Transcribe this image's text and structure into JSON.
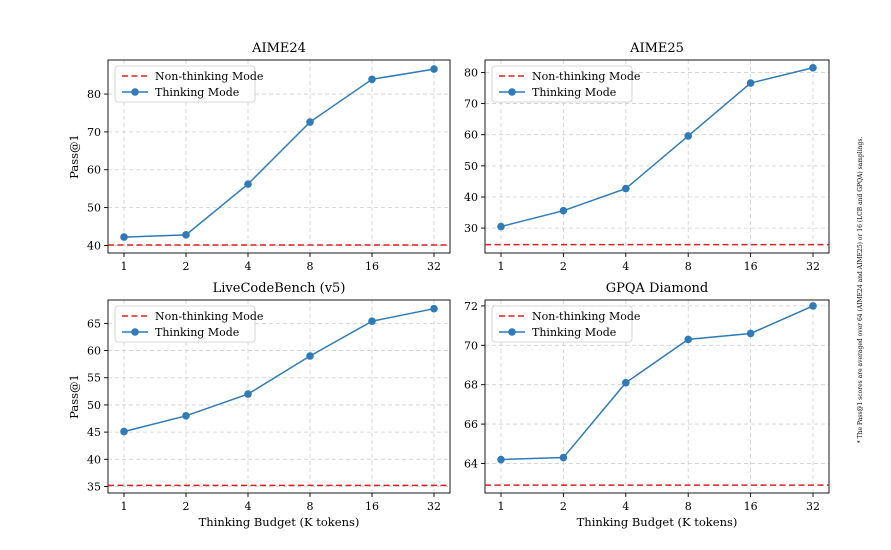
{
  "colors": {
    "thinking": "#2f7bb8",
    "non_thinking": "#e02020",
    "grid": "#cfcfcf",
    "axis": "#000000"
  },
  "footnote": "* The Pass@1 scores are averaged over 64 (AIME24 and AIME25) or 16 (LCB and GPQA) samplings.",
  "chart_data": [
    {
      "type": "line",
      "title": "AIME24",
      "xlabel": "",
      "ylabel": "Pass@1",
      "x_scale": "log2",
      "categories": [
        "1",
        "2",
        "4",
        "8",
        "16",
        "32"
      ],
      "ylim": [
        38,
        89
      ],
      "yticks": [
        40,
        50,
        60,
        70,
        80
      ],
      "legend": "top-left",
      "grid": true,
      "series": [
        {
          "name": "Non-thinking Mode",
          "style": "dashed",
          "baseline": 40.1
        },
        {
          "name": "Thinking Mode",
          "style": "line-marker",
          "values": [
            42.2,
            42.8,
            56.2,
            72.6,
            83.9,
            86.6
          ]
        }
      ]
    },
    {
      "type": "line",
      "title": "AIME25",
      "xlabel": "",
      "ylabel": "",
      "x_scale": "log2",
      "categories": [
        "1",
        "2",
        "4",
        "8",
        "16",
        "32"
      ],
      "ylim": [
        22,
        84
      ],
      "yticks": [
        30,
        40,
        50,
        60,
        70,
        80
      ],
      "legend": "top-left",
      "grid": true,
      "series": [
        {
          "name": "Non-thinking Mode",
          "style": "dashed",
          "baseline": 24.7
        },
        {
          "name": "Thinking Mode",
          "style": "line-marker",
          "values": [
            30.5,
            35.6,
            42.7,
            59.6,
            76.6,
            81.5
          ]
        }
      ]
    },
    {
      "type": "line",
      "title": "LiveCodeBench (v5)",
      "xlabel": "Thinking Budget (K tokens)",
      "ylabel": "Pass@1",
      "x_scale": "log2",
      "categories": [
        "1",
        "2",
        "4",
        "8",
        "16",
        "32"
      ],
      "ylim": [
        33.8,
        69.3
      ],
      "yticks": [
        35,
        40,
        45,
        50,
        55,
        60,
        65
      ],
      "legend": "top-left",
      "grid": true,
      "series": [
        {
          "name": "Non-thinking Mode",
          "style": "dashed",
          "baseline": 35.2
        },
        {
          "name": "Thinking Mode",
          "style": "line-marker",
          "values": [
            45.1,
            48.0,
            52.0,
            59.0,
            65.4,
            67.7
          ]
        }
      ]
    },
    {
      "type": "line",
      "title": "GPQA Diamond",
      "xlabel": "Thinking Budget (K tokens)",
      "ylabel": "",
      "x_scale": "log2",
      "categories": [
        "1",
        "2",
        "4",
        "8",
        "16",
        "32"
      ],
      "ylim": [
        62.5,
        72.3
      ],
      "yticks": [
        64,
        66,
        68,
        70,
        72
      ],
      "legend": "top-left",
      "grid": true,
      "series": [
        {
          "name": "Non-thinking Mode",
          "style": "dashed",
          "baseline": 62.9
        },
        {
          "name": "Thinking Mode",
          "style": "line-marker",
          "values": [
            64.2,
            64.3,
            68.1,
            70.3,
            70.6,
            72.0
          ]
        }
      ]
    }
  ]
}
